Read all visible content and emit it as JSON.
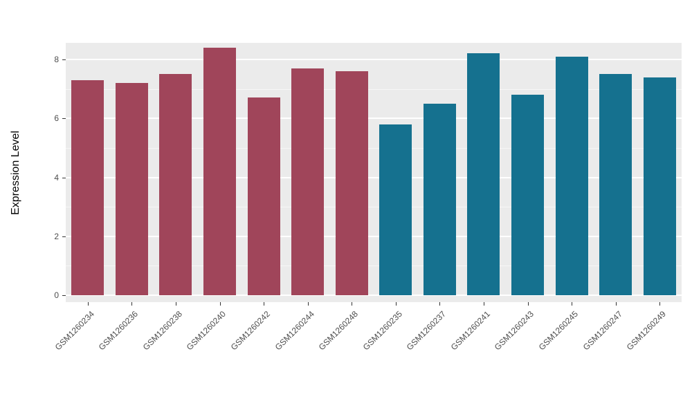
{
  "chart_data": {
    "type": "bar",
    "title": "",
    "xlabel": "",
    "ylabel": "Expression Level",
    "categories": [
      "GSM1260234",
      "GSM1260236",
      "GSM1260238",
      "GSM1260240",
      "GSM1260242",
      "GSM1260244",
      "GSM1260248",
      "GSM1260235",
      "GSM1260237",
      "GSM1260241",
      "GSM1260243",
      "GSM1260245",
      "GSM1260247",
      "GSM1260249"
    ],
    "values": [
      7.3,
      7.2,
      7.5,
      8.4,
      6.7,
      7.7,
      7.6,
      5.8,
      6.5,
      8.2,
      6.8,
      8.1,
      7.5,
      7.4
    ],
    "colors": [
      "#A0455A",
      "#A0455A",
      "#A0455A",
      "#A0455A",
      "#A0455A",
      "#A0455A",
      "#A0455A",
      "#15718F",
      "#15718F",
      "#15718F",
      "#15718F",
      "#15718F",
      "#15718F",
      "#15718F"
    ],
    "group_colors": {
      "group1": "#A0455A",
      "group2": "#15718F"
    },
    "yticks": [
      0,
      2,
      4,
      6,
      8
    ],
    "yticks_minor": [
      1,
      3,
      5,
      7
    ],
    "ylim": [
      0,
      8.57
    ],
    "grid": true,
    "legend": "none",
    "panel_background": "#EBEBEB",
    "gridline_color": "#FFFFFF",
    "tick_text_color": "#4D4D4D"
  }
}
